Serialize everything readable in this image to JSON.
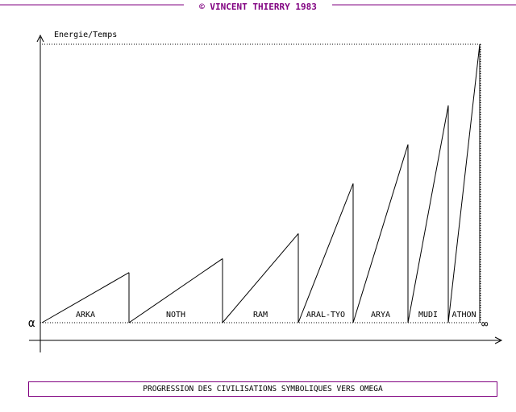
{
  "header": {
    "copyright": "© VINCENT THIERRY 1983"
  },
  "axes": {
    "ylabel": "Energie/Temps",
    "start_symbol": "α",
    "end_symbol": "∞"
  },
  "caption": "PROGRESSION DES CIVILISATIONS SYMBOLIQUES VERS OMEGA",
  "colors": {
    "accent": "#800080",
    "ink": "#000000"
  },
  "chart_data": {
    "type": "line",
    "ylabel": "Energie/Temps",
    "civilizations": [
      {
        "name": "ARKA",
        "rel_peak": 0.18
      },
      {
        "name": "NOTH",
        "rel_peak": 0.23
      },
      {
        "name": "RAM",
        "rel_peak": 0.32
      },
      {
        "name": "ARAL-TYO",
        "rel_peak": 0.5
      },
      {
        "name": "ARYA",
        "rel_peak": 0.64
      },
      {
        "name": "MUDI",
        "rel_peak": 0.78
      },
      {
        "name": "ATHON",
        "rel_peak": 1.0
      }
    ]
  }
}
